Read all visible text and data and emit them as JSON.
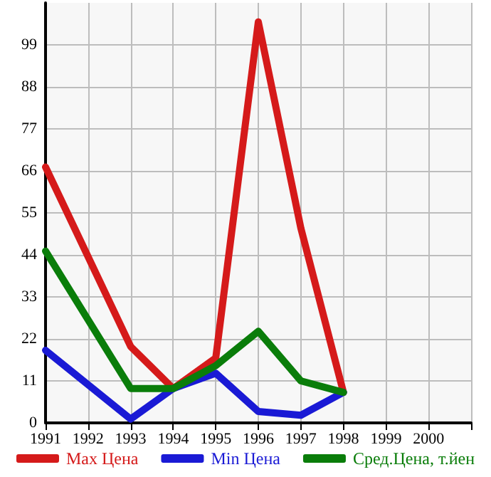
{
  "chart_data": {
    "type": "line",
    "x": [
      1991,
      1993,
      1994,
      1995,
      1996,
      1997,
      1998
    ],
    "series": [
      {
        "name": "Max Цена",
        "color": "#d51a1a",
        "values": [
          67,
          20,
          9,
          17,
          105,
          51,
          8
        ]
      },
      {
        "name": "Min Цена",
        "color": "#1a1ad5",
        "values": [
          19,
          1,
          9,
          13,
          3,
          2,
          8
        ]
      },
      {
        "name": "Сред.Цена, т.йен",
        "color": "#0a7d0a",
        "values": [
          45,
          9,
          9,
          15,
          24,
          11,
          8
        ]
      }
    ],
    "xlim": [
      1991,
      2001
    ],
    "xticks": [
      1991,
      1992,
      1993,
      1994,
      1995,
      1996,
      1997,
      1998,
      1999,
      2000
    ],
    "ylim": [
      0,
      110
    ],
    "yticks": [
      0,
      11,
      22,
      33,
      44,
      55,
      66,
      77,
      88,
      99
    ],
    "grid": true,
    "legend": "bottom",
    "marker": "none",
    "line_style": "solid"
  }
}
